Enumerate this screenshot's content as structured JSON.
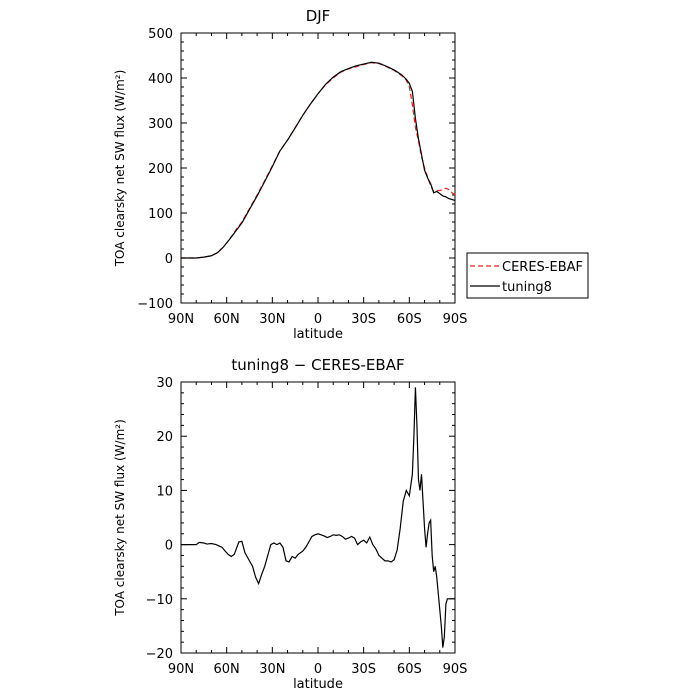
{
  "chart_data": [
    {
      "type": "line",
      "title": "DJF",
      "xlabel": "latitude",
      "ylabel": "TOA clearsky net SW flux (W/m²)",
      "xlim": [
        -90,
        90
      ],
      "ylim": [
        -100,
        500
      ],
      "x_ticks": [
        -90,
        -60,
        -30,
        0,
        30,
        60,
        90
      ],
      "x_tick_labels": [
        "90N",
        "60N",
        "30N",
        "0",
        "30S",
        "60S",
        "90S"
      ],
      "y_ticks": [
        -100,
        0,
        100,
        200,
        300,
        400,
        500
      ],
      "y_tick_labels": [
        "−100",
        "0",
        "100",
        "200",
        "300",
        "400",
        "500"
      ],
      "grid": false,
      "legend": "right",
      "series": [
        {
          "name": "CERES-EBAF",
          "color": "#e8211c",
          "dash": "dashed",
          "x": [
            -90,
            -80,
            -75,
            -70,
            -66,
            -62,
            -58,
            -54,
            -50,
            -45,
            -40,
            -35,
            -30,
            -25,
            -20,
            -15,
            -10,
            -5,
            0,
            5,
            10,
            15,
            20,
            25,
            30,
            35,
            40,
            45,
            50,
            55,
            58,
            60,
            62,
            64,
            66,
            68,
            70,
            72,
            74,
            76,
            78,
            80,
            82,
            84,
            86,
            88,
            90
          ],
          "values": [
            0,
            0,
            2,
            5,
            12,
            25,
            42,
            62,
            80,
            110,
            140,
            172,
            205,
            238,
            262,
            290,
            317,
            342,
            365,
            385,
            400,
            413,
            420,
            425,
            430,
            434,
            432,
            425,
            417,
            405,
            395,
            380,
            340,
            290,
            260,
            225,
            200,
            180,
            160,
            148,
            150,
            150,
            152,
            155,
            152,
            145,
            140
          ]
        },
        {
          "name": "tuning8",
          "color": "#000000",
          "dash": "solid",
          "x": [
            -90,
            -80,
            -75,
            -70,
            -66,
            -62,
            -58,
            -54,
            -50,
            -45,
            -40,
            -35,
            -30,
            -25,
            -20,
            -15,
            -10,
            -5,
            0,
            5,
            10,
            15,
            20,
            25,
            30,
            35,
            40,
            45,
            50,
            55,
            58,
            60,
            62,
            64,
            66,
            68,
            70,
            72,
            74,
            76,
            78,
            80,
            82,
            84,
            86,
            88,
            90
          ],
          "values": [
            0,
            0,
            2,
            5,
            12,
            25,
            42,
            60,
            78,
            108,
            138,
            170,
            203,
            238,
            262,
            289,
            317,
            342,
            365,
            386,
            402,
            414,
            421,
            427,
            431,
            435,
            433,
            426,
            418,
            407,
            397,
            388,
            370,
            310,
            265,
            230,
            195,
            178,
            165,
            145,
            148,
            143,
            138,
            136,
            132,
            130,
            128
          ]
        }
      ]
    },
    {
      "type": "line",
      "title": "tuning8 − CERES-EBAF",
      "xlabel": "latitude",
      "ylabel": "TOA clearsky net SW flux (W/m²)",
      "xlim": [
        -90,
        90
      ],
      "ylim": [
        -20,
        30
      ],
      "x_ticks": [
        -90,
        -60,
        -30,
        0,
        30,
        60,
        90
      ],
      "x_tick_labels": [
        "90N",
        "60N",
        "30N",
        "0",
        "30S",
        "60S",
        "90S"
      ],
      "y_ticks": [
        -20,
        -10,
        0,
        10,
        20,
        30
      ],
      "y_tick_labels": [
        "−20",
        "−10",
        "0",
        "10",
        "20",
        "30"
      ],
      "grid": false,
      "series": [
        {
          "color": "#000000",
          "x": [
            -90,
            -80,
            -78,
            -75,
            -73,
            -70,
            -67,
            -63,
            -61,
            -59,
            -57,
            -55,
            -52,
            -50,
            -48,
            -45,
            -43,
            -41,
            -39,
            -37,
            -35,
            -33,
            -31,
            -29,
            -27,
            -25,
            -23,
            -21,
            -19,
            -17,
            -15,
            -13,
            -10,
            -8,
            -6,
            -4,
            -2,
            0,
            2,
            4,
            6,
            8,
            10,
            12,
            14,
            16,
            18,
            20,
            22,
            24,
            26,
            28,
            30,
            32,
            34,
            36,
            38,
            40,
            42,
            44,
            46,
            48,
            50,
            52,
            54,
            56,
            58,
            60,
            62,
            63,
            64,
            65,
            66,
            67,
            68,
            69,
            70,
            71,
            72,
            73,
            74,
            75,
            76,
            77,
            78,
            79,
            80,
            81,
            82,
            83,
            84,
            85,
            86,
            87,
            88,
            89,
            90
          ],
          "values": [
            0,
            0,
            0.4,
            0.3,
            0.1,
            0.2,
            0,
            -0.5,
            -1.2,
            -1.8,
            -2.2,
            -1.8,
            0.5,
            0.6,
            -1.5,
            -3,
            -4,
            -6,
            -7.2,
            -5.5,
            -4,
            -2,
            0,
            0.3,
            0,
            0.3,
            -0.5,
            -3,
            -3.2,
            -2.2,
            -2.5,
            -1.8,
            -1.2,
            -0.5,
            0.5,
            1.5,
            1.8,
            2,
            1.8,
            1.6,
            1.3,
            1.5,
            1.8,
            1.7,
            1.8,
            1.5,
            1,
            1.2,
            1.5,
            1.2,
            0,
            0.5,
            0.8,
            0.3,
            1.4,
            0,
            -0.8,
            -2,
            -2.5,
            -3,
            -3,
            -3.2,
            -2.8,
            -1,
            3,
            8,
            10,
            9,
            13,
            20,
            29,
            22,
            12,
            10,
            13,
            8,
            3,
            -0.5,
            2,
            4,
            4.5,
            -2,
            -5,
            -4,
            -6,
            -9,
            -12,
            -15,
            -19,
            -17,
            -11,
            -10,
            -10,
            -10,
            -10,
            -10,
            -10
          ]
        }
      ]
    }
  ]
}
